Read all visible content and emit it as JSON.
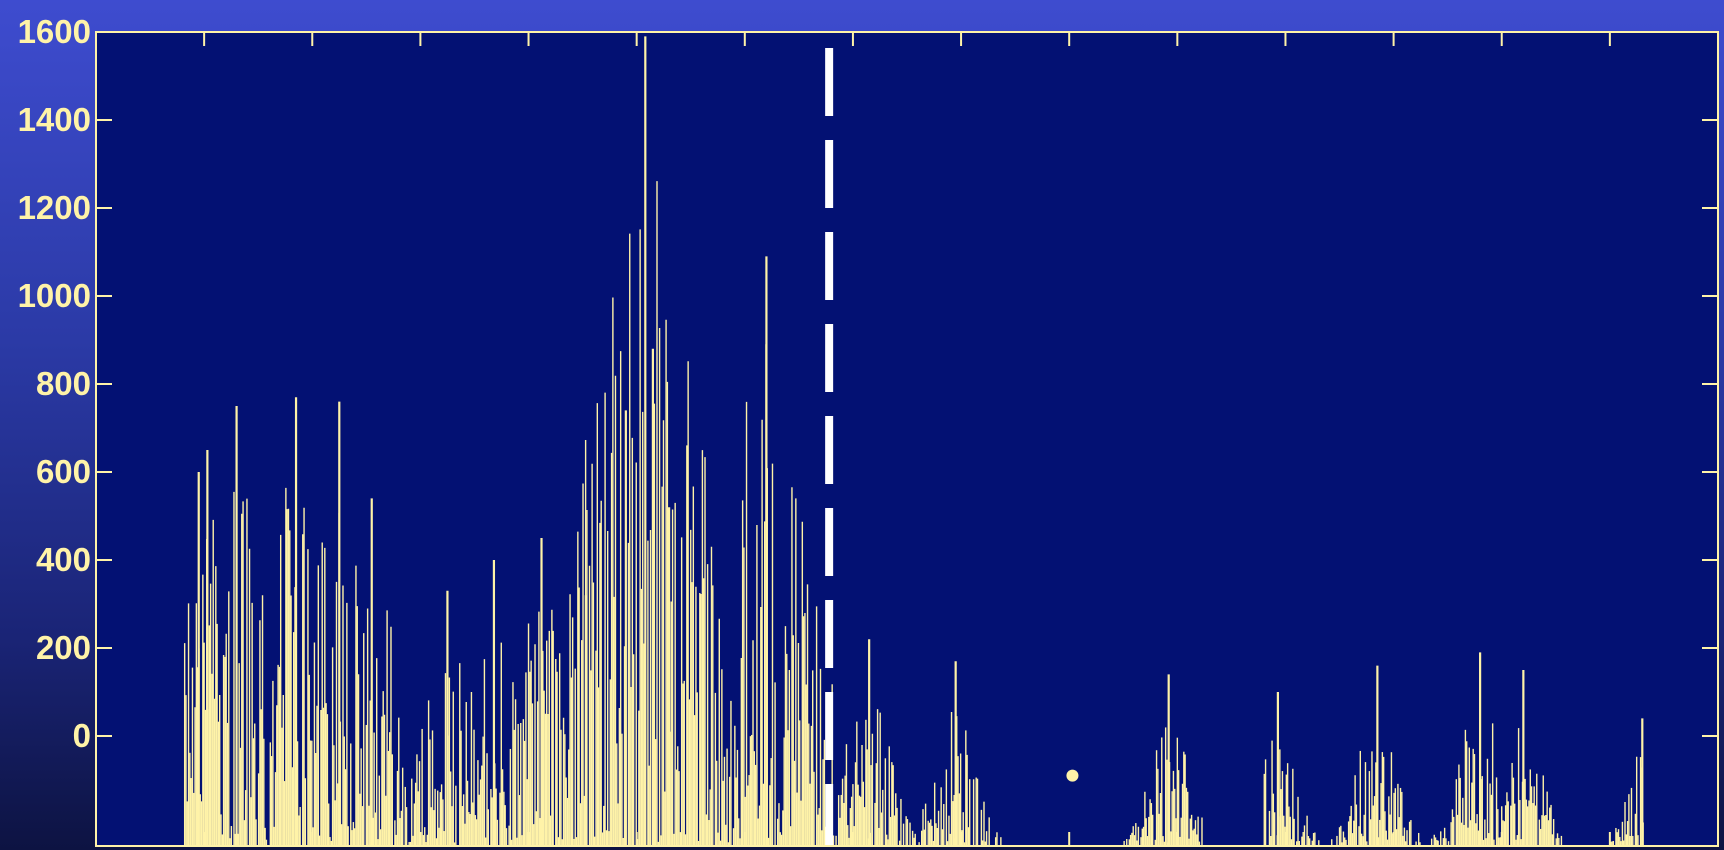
{
  "chart_data": {
    "type": "bar",
    "title": "",
    "xlabel": "",
    "ylabel": "",
    "ylim": [
      -250,
      1600
    ],
    "yticks": [
      0,
      200,
      400,
      600,
      800,
      1000,
      1200,
      1400,
      1600
    ],
    "ytick_labels": [
      "0",
      "200",
      "400",
      "600",
      "800",
      "1000",
      "1200",
      "1400",
      "1600"
    ],
    "xlim": [
      0,
      1500
    ],
    "xticks_count": 15,
    "grid": false,
    "legend": "none",
    "series_color": "#fff3a8",
    "background_color": "#031173",
    "marker_line_color": "#ffffff",
    "marker_line_x": 678,
    "peaks": [
      {
        "x": 95,
        "value": 600
      },
      {
        "x": 103,
        "value": 650
      },
      {
        "x": 130,
        "value": 750
      },
      {
        "x": 185,
        "value": 770
      },
      {
        "x": 225,
        "value": 760
      },
      {
        "x": 255,
        "value": 540
      },
      {
        "x": 325,
        "value": 330
      },
      {
        "x": 368,
        "value": 400
      },
      {
        "x": 412,
        "value": 450
      },
      {
        "x": 453,
        "value": 320
      },
      {
        "x": 490,
        "value": 740
      },
      {
        "x": 508,
        "value": 1590
      },
      {
        "x": 515,
        "value": 880
      },
      {
        "x": 530,
        "value": 520
      },
      {
        "x": 620,
        "value": 1090
      },
      {
        "x": 715,
        "value": 220
      },
      {
        "x": 795,
        "value": 170
      },
      {
        "x": 992,
        "value": 140
      },
      {
        "x": 1093,
        "value": 100
      },
      {
        "x": 1185,
        "value": 160
      },
      {
        "x": 1280,
        "value": 190
      },
      {
        "x": 1320,
        "value": 150
      },
      {
        "x": 1430,
        "value": 40
      }
    ],
    "isolated_points": [
      {
        "x": 903,
        "value": -90
      }
    ]
  }
}
